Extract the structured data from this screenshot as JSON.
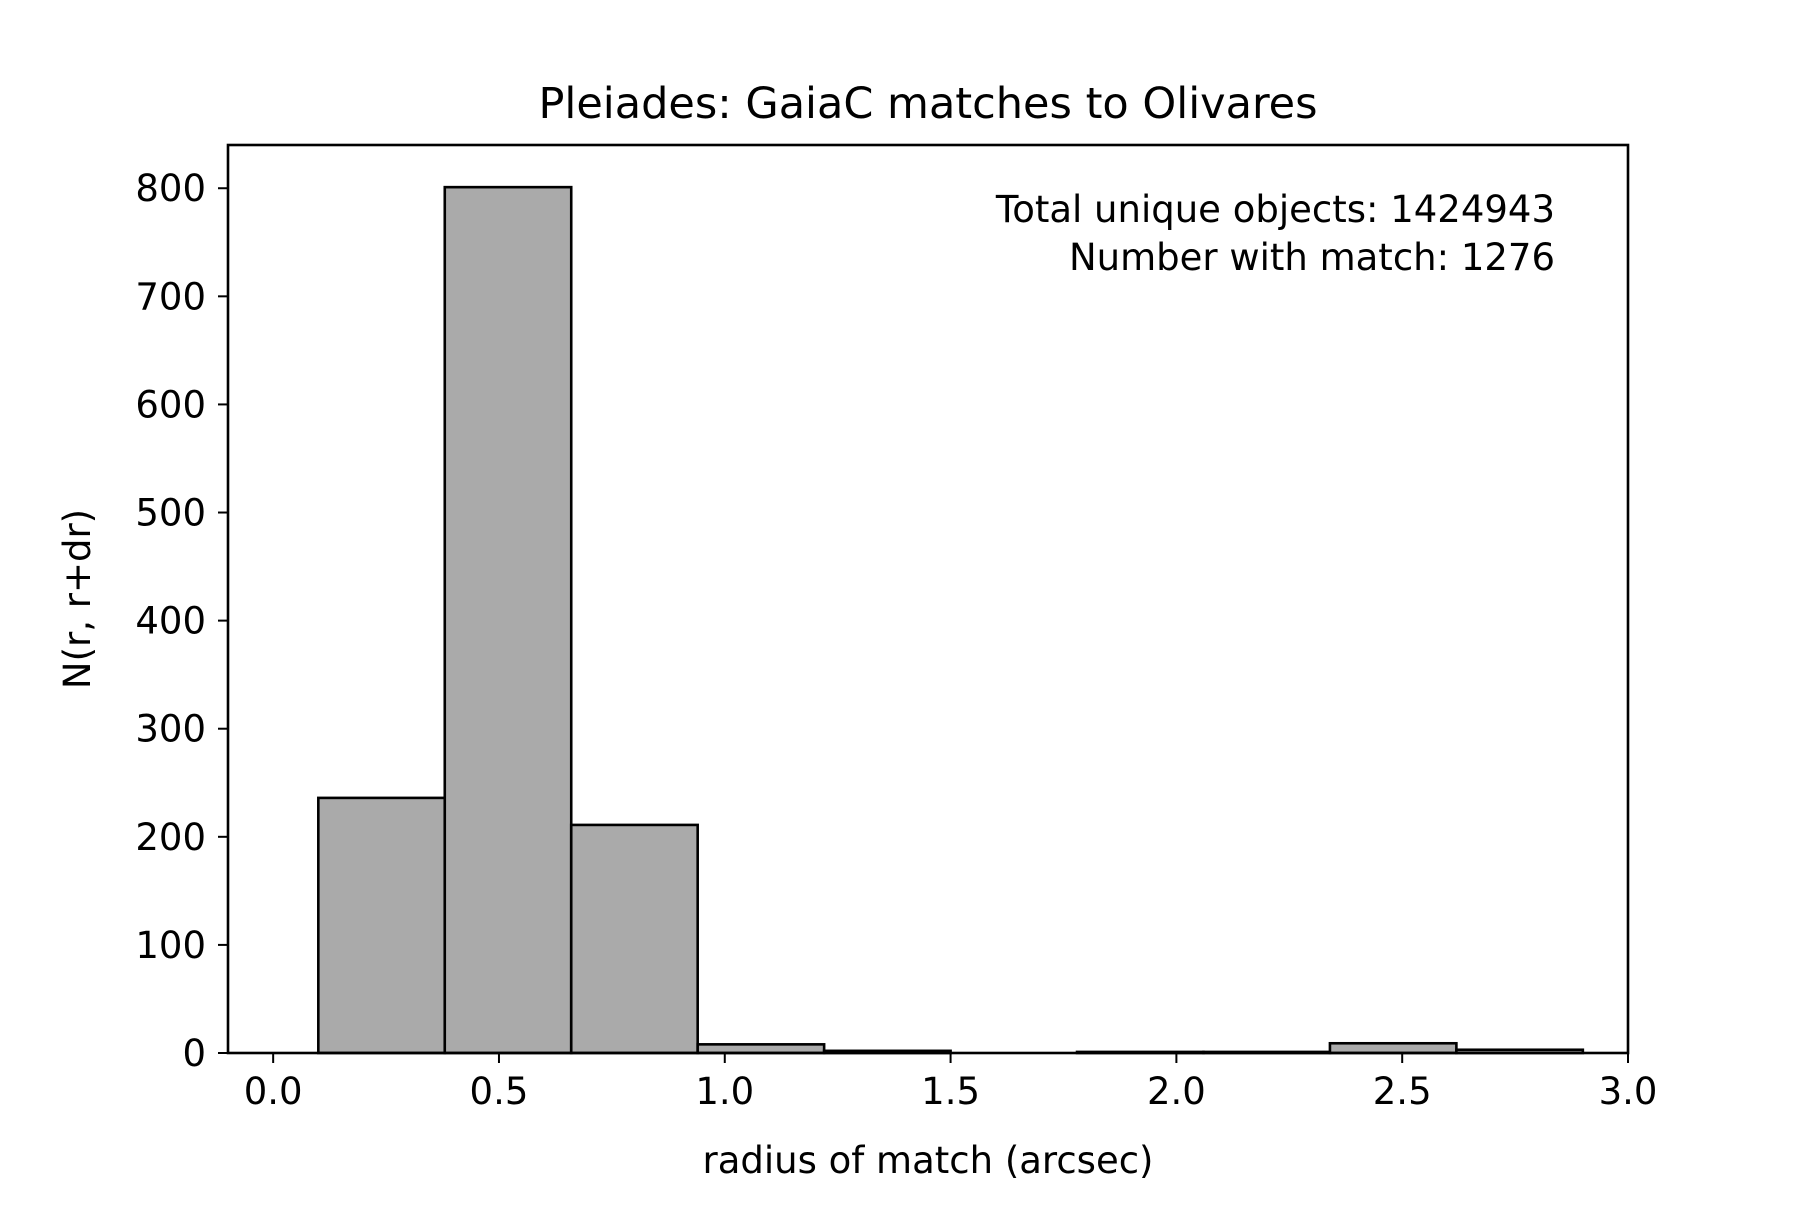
{
  "chart_data": {
    "type": "bar",
    "subtype": "histogram",
    "title": "Pleiades: GaiaC matches to Olivares",
    "xlabel": "radius of match (arcsec)",
    "ylabel": "N(r, r+dr)",
    "xlim": [
      -0.1,
      3.0
    ],
    "ylim": [
      0,
      840
    ],
    "xticks": [
      0.0,
      0.5,
      1.0,
      1.5,
      2.0,
      2.5,
      3.0
    ],
    "xtick_labels": [
      "0.0",
      "0.5",
      "1.0",
      "1.5",
      "2.0",
      "2.5",
      "3.0"
    ],
    "yticks": [
      0,
      100,
      200,
      300,
      400,
      500,
      600,
      700,
      800
    ],
    "ytick_labels": [
      "0",
      "100",
      "200",
      "300",
      "400",
      "500",
      "600",
      "700",
      "800"
    ],
    "bin_edges": [
      0.1,
      0.38,
      0.66,
      0.94,
      1.22,
      1.5,
      1.78,
      2.06,
      2.34,
      2.62,
      2.9
    ],
    "values": [
      236,
      801,
      211,
      8,
      2,
      0,
      1,
      1,
      9,
      3
    ],
    "grid": false,
    "bar_color": "#aaaaaa",
    "edge_color": "#000000",
    "annotations": [
      "Total unique objects: 1424943",
      "Number with match: 1276"
    ]
  }
}
